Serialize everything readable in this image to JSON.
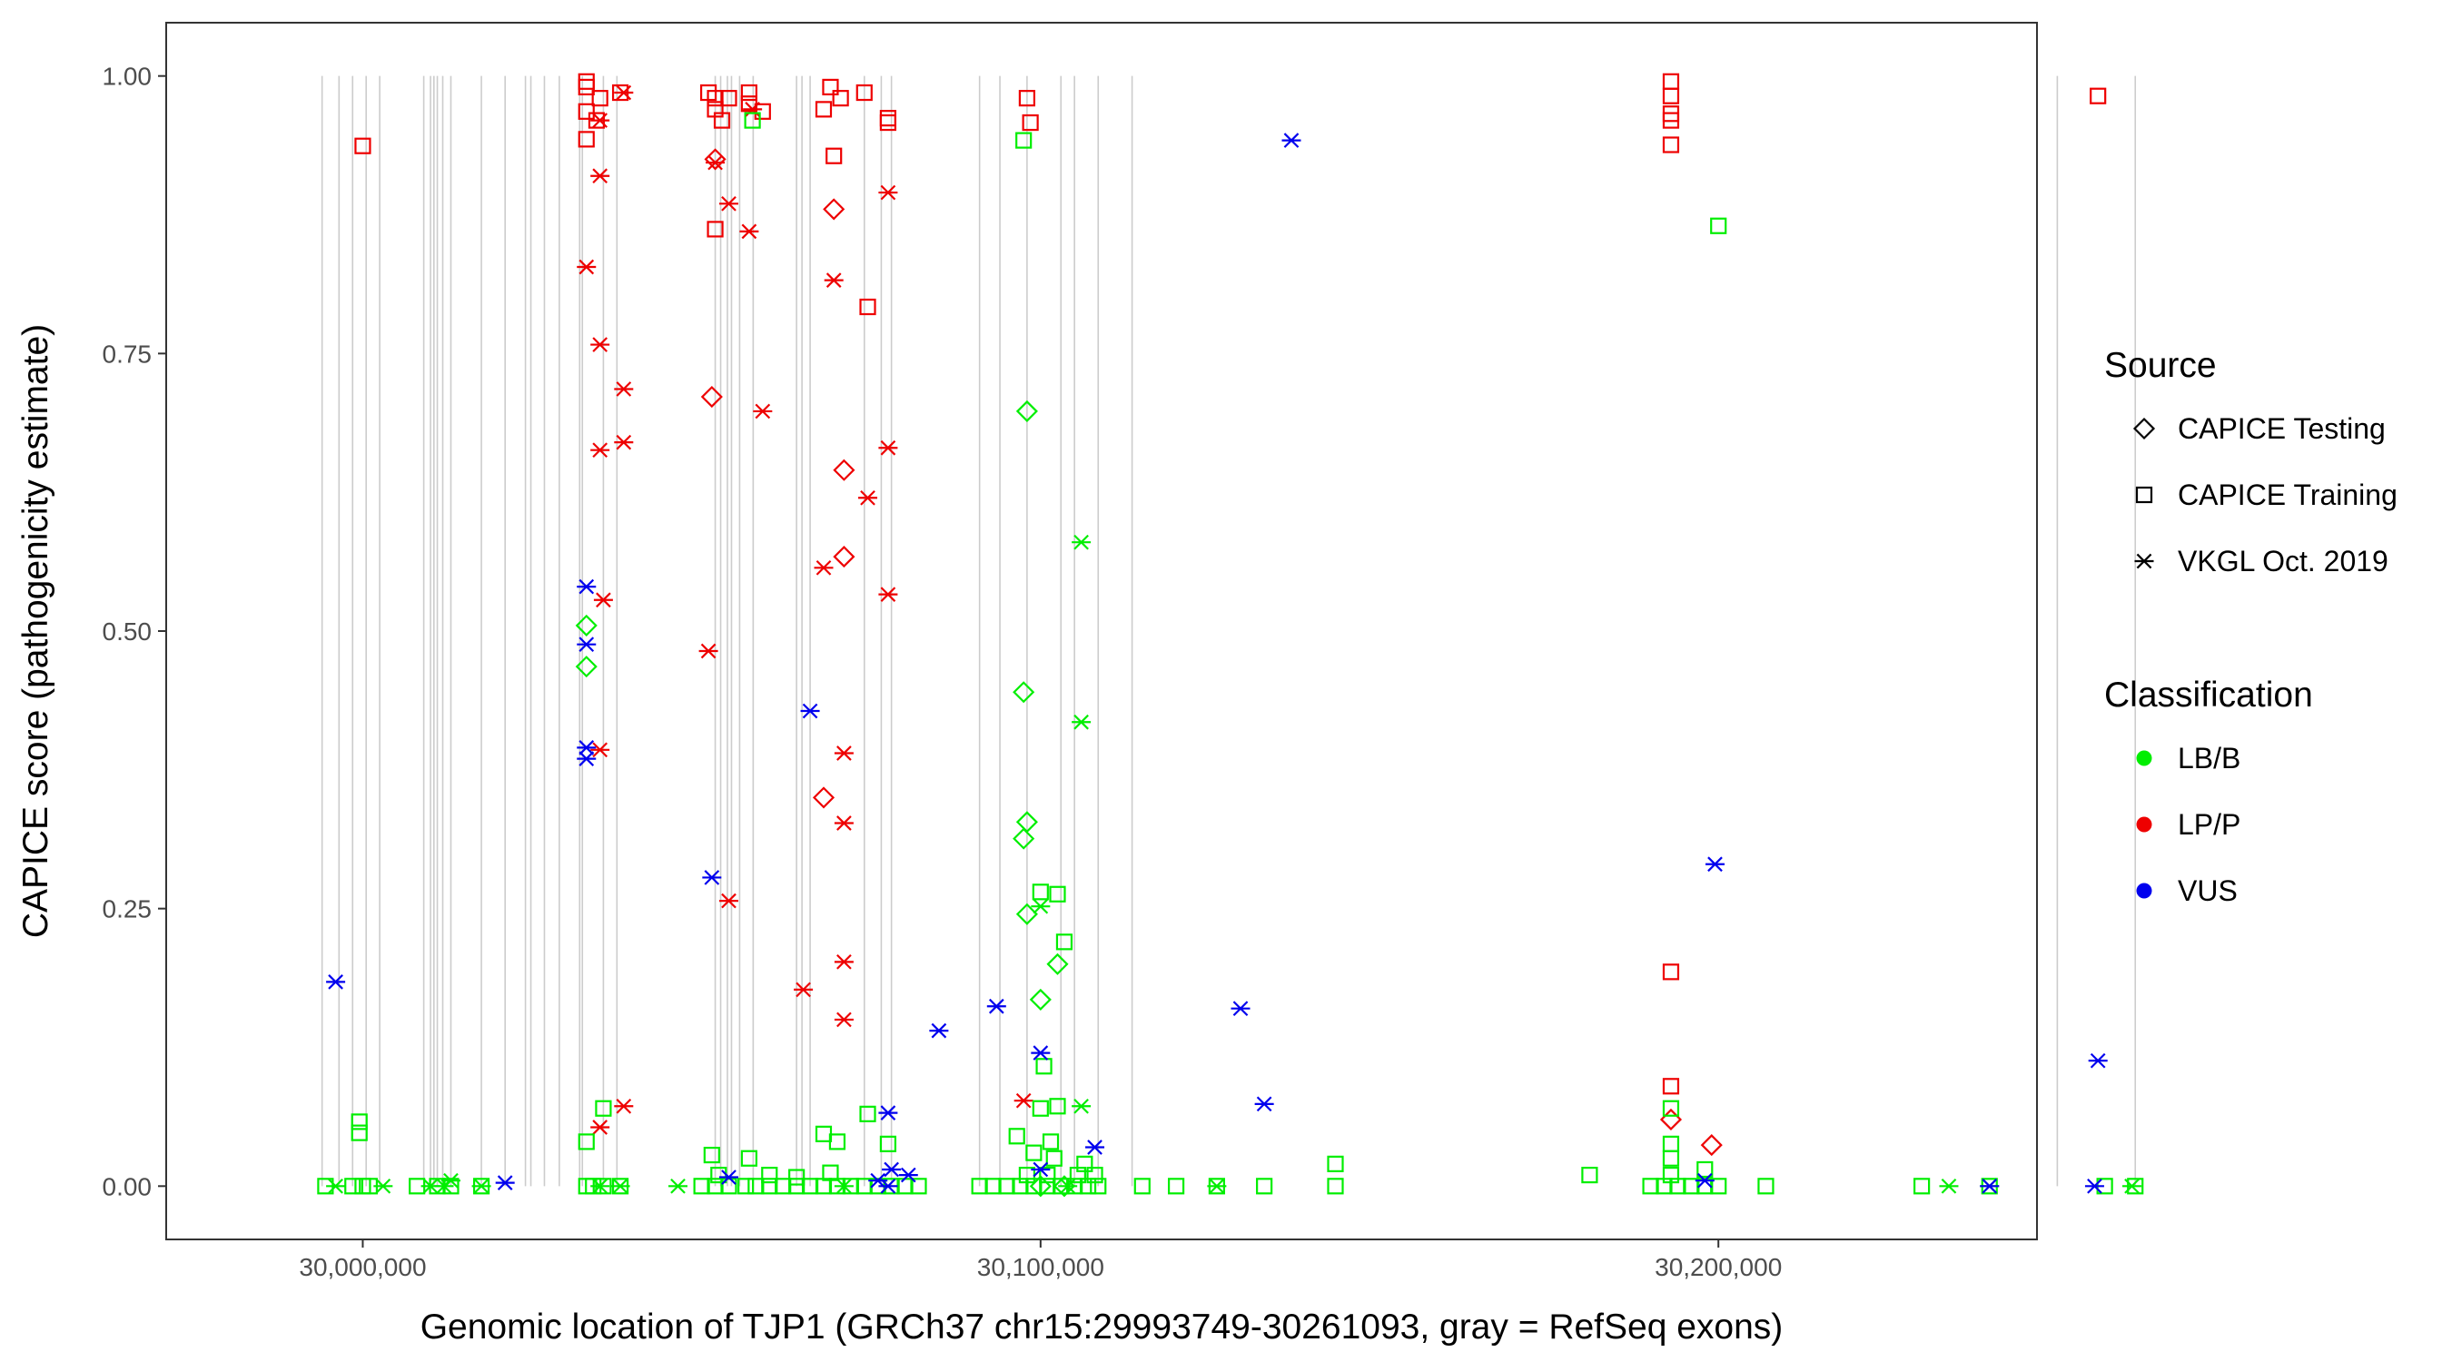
{
  "chart_data": {
    "type": "scatter",
    "xlabel": "Genomic location of TJP1 (GRCh37 chr15:29993749-30261093, gray = RefSeq exons)",
    "ylabel": "CAPICE score (pathogenicity estimate)",
    "xlim": [
      29971000,
      30247000
    ],
    "ylim": [
      -0.048,
      1.048
    ],
    "x_ticks": [
      30000000,
      30100000,
      30200000
    ],
    "x_tick_labels": [
      "30,000,000",
      "30,100,000",
      "30,200,000"
    ],
    "y_ticks": [
      0.0,
      0.25,
      0.5,
      0.75,
      1.0
    ],
    "y_tick_labels": [
      "0.00",
      "0.25",
      "0.50",
      "0.75",
      "1.00"
    ],
    "grid": false,
    "exon_lines": [
      29994000,
      29996500,
      29998500,
      30000500,
      30002500,
      30009000,
      30010000,
      30010500,
      30011000,
      30011800,
      30013000,
      30017500,
      30021000,
      30024000,
      30024800,
      30026800,
      30029000,
      30032000,
      30032400,
      30035500,
      30037500,
      30052000,
      30052800,
      30053800,
      30054400,
      30055600,
      30057600,
      30064000,
      30064800,
      30066000,
      30074000,
      30076500,
      30078000,
      30091000,
      30094000,
      30098000,
      30103000,
      30105000,
      30108500,
      30113500,
      30250000,
      30261500
    ],
    "colors": {
      "LB/B": "#00ee00",
      "LP/P": "#ee0000",
      "VUS": "#0000ee"
    },
    "legend": {
      "position": "right",
      "source_title": "Source",
      "source_items": [
        {
          "label": "CAPICE Testing",
          "shape": "diamond"
        },
        {
          "label": "CAPICE Training",
          "shape": "square"
        },
        {
          "label": "VKGL Oct. 2019",
          "shape": "asterisk"
        }
      ],
      "classification_title": "Classification",
      "classification_items": [
        {
          "label": "LB/B",
          "color": "#00ee00"
        },
        {
          "label": "LP/P",
          "color": "#ee0000"
        },
        {
          "label": "VUS",
          "color": "#0000ee"
        }
      ]
    },
    "series": [
      {
        "name": "CAPICE Training",
        "classification": "LP/P",
        "shape": "square",
        "points": [
          [
            30000000,
            0.937
          ],
          [
            30033000,
            0.995
          ],
          [
            30033000,
            0.99
          ],
          [
            30033000,
            0.968
          ],
          [
            30033000,
            0.943
          ],
          [
            30034500,
            0.96
          ],
          [
            30035000,
            0.98
          ],
          [
            30038000,
            0.985
          ],
          [
            30051000,
            0.985
          ],
          [
            30052000,
            0.98
          ],
          [
            30052000,
            0.97
          ],
          [
            30053000,
            0.96
          ],
          [
            30054000,
            0.98
          ],
          [
            30057000,
            0.985
          ],
          [
            30057000,
            0.975
          ],
          [
            30059000,
            0.968
          ],
          [
            30052000,
            0.862
          ],
          [
            30068000,
            0.97
          ],
          [
            30069000,
            0.99
          ],
          [
            30070500,
            0.98
          ],
          [
            30074000,
            0.985
          ],
          [
            30069500,
            0.928
          ],
          [
            30077500,
            0.962
          ],
          [
            30077500,
            0.958
          ],
          [
            30074500,
            0.792
          ],
          [
            30098000,
            0.98
          ],
          [
            30098500,
            0.958
          ],
          [
            30193000,
            0.995
          ],
          [
            30193000,
            0.982
          ],
          [
            30193000,
            0.966
          ],
          [
            30193000,
            0.96
          ],
          [
            30193000,
            0.938
          ],
          [
            30256000,
            0.982
          ],
          [
            30193000,
            0.193
          ],
          [
            30193000,
            0.09
          ]
        ]
      },
      {
        "name": "CAPICE Testing",
        "classification": "LP/P",
        "shape": "diamond",
        "points": [
          [
            30052000,
            0.925
          ],
          [
            30069500,
            0.88
          ],
          [
            30051500,
            0.711
          ],
          [
            30071000,
            0.645
          ],
          [
            30071000,
            0.567
          ],
          [
            30068000,
            0.35
          ],
          [
            30193000,
            0.06
          ],
          [
            30199000,
            0.037
          ]
        ]
      },
      {
        "name": "VKGL Oct. 2019",
        "classification": "LP/P",
        "shape": "asterisk",
        "points": [
          [
            30038500,
            0.985
          ],
          [
            30035000,
            0.96
          ],
          [
            30057500,
            0.97
          ],
          [
            30035000,
            0.91
          ],
          [
            30052000,
            0.922
          ],
          [
            30077500,
            0.895
          ],
          [
            30054000,
            0.885
          ],
          [
            30057000,
            0.86
          ],
          [
            30033000,
            0.828
          ],
          [
            30069500,
            0.816
          ],
          [
            30035000,
            0.758
          ],
          [
            30038500,
            0.718
          ],
          [
            30059000,
            0.698
          ],
          [
            30038500,
            0.67
          ],
          [
            30035000,
            0.663
          ],
          [
            30077500,
            0.665
          ],
          [
            30074500,
            0.62
          ],
          [
            30068000,
            0.557
          ],
          [
            30035500,
            0.528
          ],
          [
            30077500,
            0.533
          ],
          [
            30051000,
            0.482
          ],
          [
            30035000,
            0.393
          ],
          [
            30071000,
            0.39
          ],
          [
            30071000,
            0.327
          ],
          [
            30054000,
            0.257
          ],
          [
            30071000,
            0.202
          ],
          [
            30065000,
            0.177
          ],
          [
            30071000,
            0.15
          ],
          [
            30097500,
            0.077
          ],
          [
            30038500,
            0.072
          ],
          [
            30035000,
            0.053
          ]
        ]
      },
      {
        "name": "CAPICE Training",
        "classification": "LB/B",
        "shape": "square",
        "points": [
          [
            30057500,
            0.96
          ],
          [
            30097500,
            0.942
          ],
          [
            30200000,
            0.865
          ],
          [
            30102500,
            0.263
          ],
          [
            30100000,
            0.265
          ],
          [
            30103500,
            0.22
          ],
          [
            30100500,
            0.108
          ],
          [
            30100000,
            0.07
          ],
          [
            30102500,
            0.072
          ],
          [
            29999500,
            0.058
          ],
          [
            29999500,
            0.048
          ],
          [
            30035500,
            0.07
          ],
          [
            30033000,
            0.04
          ],
          [
            30051500,
            0.028
          ],
          [
            30057000,
            0.025
          ],
          [
            30068000,
            0.047
          ],
          [
            30070000,
            0.04
          ],
          [
            30074500,
            0.065
          ],
          [
            30077500,
            0.038
          ],
          [
            30096500,
            0.045
          ],
          [
            30193000,
            0.07
          ],
          [
            30193000,
            0.038
          ],
          [
            30193000,
            0.025
          ],
          [
            30181000,
            0.01
          ],
          [
            30143500,
            0.02
          ],
          [
            29994500,
            0.0
          ],
          [
            29998500,
            0.0
          ],
          [
            30000000,
            0.0
          ],
          [
            30001000,
            0.0
          ],
          [
            30008000,
            0.0
          ],
          [
            30011000,
            0.0
          ],
          [
            30013000,
            0.0
          ],
          [
            30017500,
            0.0
          ],
          [
            30033000,
            0.0
          ],
          [
            30034000,
            0.0
          ],
          [
            30035500,
            0.0
          ],
          [
            30038000,
            0.0
          ],
          [
            30050000,
            0.0
          ],
          [
            30052000,
            0.0
          ],
          [
            30054000,
            0.0
          ],
          [
            30056500,
            0.0
          ],
          [
            30058000,
            0.0
          ],
          [
            30060000,
            0.0
          ],
          [
            30062000,
            0.0
          ],
          [
            30064000,
            0.0
          ],
          [
            30066000,
            0.0
          ],
          [
            30068000,
            0.0
          ],
          [
            30070000,
            0.0
          ],
          [
            30072000,
            0.0
          ],
          [
            30074000,
            0.0
          ],
          [
            30076000,
            0.0
          ],
          [
            30078000,
            0.0
          ],
          [
            30080000,
            0.0
          ],
          [
            30082000,
            0.0
          ],
          [
            30091000,
            0.0
          ],
          [
            30093000,
            0.0
          ],
          [
            30095000,
            0.0
          ],
          [
            30097000,
            0.0
          ],
          [
            30099000,
            0.0
          ],
          [
            30101000,
            0.0
          ],
          [
            30103000,
            0.0
          ],
          [
            30105000,
            0.0
          ],
          [
            30107000,
            0.0
          ],
          [
            30108500,
            0.0
          ],
          [
            30115000,
            0.0
          ],
          [
            30120000,
            0.0
          ],
          [
            30126000,
            0.0
          ],
          [
            30133000,
            0.0
          ],
          [
            30143500,
            0.0
          ],
          [
            30190000,
            0.0
          ],
          [
            30192000,
            0.0
          ],
          [
            30194000,
            0.0
          ],
          [
            30196000,
            0.0
          ],
          [
            30198000,
            0.0
          ],
          [
            30200000,
            0.0
          ],
          [
            30207000,
            0.0
          ],
          [
            30230000,
            0.0
          ],
          [
            30240000,
            0.0
          ],
          [
            30257000,
            0.0
          ],
          [
            30261500,
            0.0
          ],
          [
            30052500,
            0.01
          ],
          [
            30060000,
            0.01
          ],
          [
            30064000,
            0.008
          ],
          [
            30069000,
            0.012
          ],
          [
            30098000,
            0.01
          ],
          [
            30101000,
            0.01
          ],
          [
            30105500,
            0.01
          ],
          [
            30108000,
            0.01
          ],
          [
            30106500,
            0.02
          ],
          [
            30099000,
            0.03
          ],
          [
            30101500,
            0.04
          ],
          [
            30102000,
            0.025
          ],
          [
            30193000,
            0.01
          ],
          [
            30198000,
            0.015
          ]
        ]
      },
      {
        "name": "CAPICE Testing",
        "classification": "LB/B",
        "shape": "diamond",
        "points": [
          [
            30098000,
            0.698
          ],
          [
            30033000,
            0.505
          ],
          [
            30033000,
            0.468
          ],
          [
            30097500,
            0.445
          ],
          [
            30098000,
            0.328
          ],
          [
            30097500,
            0.313
          ],
          [
            30098000,
            0.245
          ],
          [
            30100000,
            0.168
          ],
          [
            30102500,
            0.2
          ],
          [
            30100000,
            0.0
          ],
          [
            30103500,
            0.0
          ]
        ]
      },
      {
        "name": "VKGL Oct. 2019",
        "classification": "LB/B",
        "shape": "asterisk",
        "points": [
          [
            30106000,
            0.58
          ],
          [
            30106000,
            0.418
          ],
          [
            30100000,
            0.252
          ],
          [
            30106000,
            0.072
          ],
          [
            29996000,
            0.0
          ],
          [
            30003000,
            0.0
          ],
          [
            30010000,
            0.0
          ],
          [
            30012000,
            0.0
          ],
          [
            30013000,
            0.005
          ],
          [
            30017500,
            0.0
          ],
          [
            30035000,
            0.0
          ],
          [
            30038000,
            0.0
          ],
          [
            30046500,
            0.0
          ],
          [
            30071000,
            0.0
          ],
          [
            30104000,
            0.0
          ],
          [
            30126000,
            0.0
          ],
          [
            30234000,
            0.0
          ],
          [
            30240000,
            0.0
          ],
          [
            30261000,
            0.0
          ]
        ]
      },
      {
        "name": "VKGL Oct. 2019",
        "classification": "VUS",
        "shape": "asterisk",
        "points": [
          [
            30137000,
            0.942
          ],
          [
            30033000,
            0.54
          ],
          [
            30033000,
            0.488
          ],
          [
            30033000,
            0.395
          ],
          [
            30033000,
            0.385
          ],
          [
            30066000,
            0.428
          ],
          [
            30199500,
            0.29
          ],
          [
            30051500,
            0.278
          ],
          [
            29996000,
            0.184
          ],
          [
            30093500,
            0.162
          ],
          [
            30129500,
            0.16
          ],
          [
            30085000,
            0.14
          ],
          [
            30100000,
            0.12
          ],
          [
            30256000,
            0.113
          ],
          [
            30133000,
            0.074
          ],
          [
            30077500,
            0.066
          ],
          [
            30108000,
            0.035
          ],
          [
            30100000,
            0.015
          ],
          [
            30078000,
            0.015
          ],
          [
            30080500,
            0.01
          ],
          [
            30054000,
            0.008
          ],
          [
            30076000,
            0.005
          ],
          [
            30021000,
            0.003
          ],
          [
            30077500,
            0.0
          ],
          [
            30240000,
            0.0
          ],
          [
            30255500,
            0.0
          ],
          [
            30198000,
            0.005
          ]
        ]
      }
    ]
  }
}
